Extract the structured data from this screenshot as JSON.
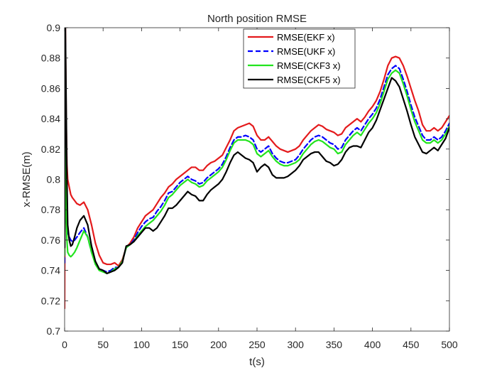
{
  "chart_data": {
    "type": "line",
    "title": "North position RMSE",
    "xlabel": "t(s)",
    "ylabel": "x-RMSE(m)",
    "xlim": [
      0,
      500
    ],
    "ylim": [
      0.7,
      0.9
    ],
    "xticks": [
      0,
      50,
      100,
      150,
      200,
      250,
      300,
      350,
      400,
      450,
      500
    ],
    "yticks": [
      0.7,
      0.72,
      0.74,
      0.76,
      0.78,
      0.8,
      0.82,
      0.84,
      0.86,
      0.88,
      0.9
    ],
    "xtick_labels": [
      "0",
      "50",
      "100",
      "150",
      "200",
      "250",
      "300",
      "350",
      "400",
      "450",
      "500"
    ],
    "ytick_labels": [
      "0.7",
      "0.72",
      "0.74",
      "0.76",
      "0.78",
      "0.8",
      "0.82",
      "0.84",
      "0.86",
      "0.88",
      "0.9"
    ],
    "grid": false,
    "legend_position": "top-right",
    "series": [
      {
        "name": "RMSE(EKF x)",
        "color": "#e41a1c",
        "dash": "solid",
        "x": [
          0,
          1,
          2,
          3,
          4,
          6,
          8,
          10,
          13,
          16,
          20,
          25,
          30,
          35,
          40,
          45,
          50,
          55,
          60,
          65,
          70,
          75,
          80,
          85,
          90,
          95,
          100,
          105,
          110,
          115,
          120,
          125,
          130,
          135,
          140,
          145,
          150,
          155,
          160,
          165,
          170,
          175,
          180,
          185,
          190,
          195,
          200,
          205,
          210,
          215,
          220,
          225,
          230,
          235,
          240,
          245,
          250,
          255,
          260,
          265,
          270,
          275,
          280,
          285,
          290,
          295,
          300,
          305,
          310,
          315,
          320,
          325,
          330,
          335,
          340,
          345,
          350,
          355,
          360,
          365,
          370,
          375,
          380,
          385,
          390,
          395,
          400,
          405,
          410,
          415,
          420,
          425,
          430,
          435,
          440,
          445,
          450,
          455,
          460,
          465,
          470,
          475,
          480,
          485,
          490,
          495,
          500
        ],
        "y": [
          0.715,
          0.9,
          0.84,
          0.81,
          0.8,
          0.795,
          0.79,
          0.788,
          0.786,
          0.784,
          0.783,
          0.785,
          0.78,
          0.77,
          0.758,
          0.75,
          0.745,
          0.744,
          0.744,
          0.745,
          0.743,
          0.747,
          0.755,
          0.758,
          0.762,
          0.768,
          0.772,
          0.776,
          0.778,
          0.78,
          0.784,
          0.788,
          0.791,
          0.795,
          0.797,
          0.8,
          0.802,
          0.804,
          0.806,
          0.808,
          0.808,
          0.806,
          0.806,
          0.809,
          0.811,
          0.812,
          0.814,
          0.816,
          0.821,
          0.826,
          0.832,
          0.834,
          0.835,
          0.836,
          0.837,
          0.835,
          0.829,
          0.826,
          0.826,
          0.828,
          0.825,
          0.822,
          0.82,
          0.819,
          0.818,
          0.819,
          0.82,
          0.822,
          0.826,
          0.829,
          0.832,
          0.834,
          0.836,
          0.835,
          0.833,
          0.832,
          0.831,
          0.829,
          0.83,
          0.834,
          0.836,
          0.838,
          0.84,
          0.838,
          0.841,
          0.845,
          0.848,
          0.852,
          0.858,
          0.866,
          0.875,
          0.88,
          0.881,
          0.88,
          0.875,
          0.868,
          0.86,
          0.852,
          0.845,
          0.836,
          0.832,
          0.832,
          0.834,
          0.832,
          0.834,
          0.838,
          0.842
        ]
      },
      {
        "name": "RMSE(UKF x)",
        "color": "#0000ff",
        "dash": "dashed",
        "x": [
          0,
          1,
          2,
          3,
          4,
          6,
          8,
          10,
          13,
          16,
          20,
          25,
          30,
          35,
          40,
          45,
          50,
          55,
          60,
          65,
          70,
          75,
          80,
          85,
          90,
          95,
          100,
          105,
          110,
          115,
          120,
          125,
          130,
          135,
          140,
          145,
          150,
          155,
          160,
          165,
          170,
          175,
          180,
          185,
          190,
          195,
          200,
          205,
          210,
          215,
          220,
          225,
          230,
          235,
          240,
          245,
          250,
          255,
          260,
          265,
          270,
          275,
          280,
          285,
          290,
          295,
          300,
          305,
          310,
          315,
          320,
          325,
          330,
          335,
          340,
          345,
          350,
          355,
          360,
          365,
          370,
          375,
          380,
          385,
          390,
          395,
          400,
          405,
          410,
          415,
          420,
          425,
          430,
          435,
          440,
          445,
          450,
          455,
          460,
          465,
          470,
          475,
          480,
          485,
          490,
          495,
          500
        ],
        "y": [
          0.745,
          0.89,
          0.8,
          0.775,
          0.765,
          0.762,
          0.76,
          0.759,
          0.76,
          0.762,
          0.765,
          0.768,
          0.762,
          0.752,
          0.745,
          0.741,
          0.74,
          0.739,
          0.74,
          0.742,
          0.742,
          0.746,
          0.755,
          0.757,
          0.76,
          0.765,
          0.769,
          0.772,
          0.774,
          0.775,
          0.779,
          0.782,
          0.786,
          0.791,
          0.792,
          0.795,
          0.798,
          0.8,
          0.802,
          0.8,
          0.799,
          0.797,
          0.798,
          0.801,
          0.803,
          0.805,
          0.807,
          0.81,
          0.815,
          0.821,
          0.826,
          0.828,
          0.828,
          0.829,
          0.828,
          0.826,
          0.82,
          0.818,
          0.82,
          0.822,
          0.817,
          0.814,
          0.812,
          0.811,
          0.811,
          0.812,
          0.813,
          0.816,
          0.82,
          0.823,
          0.826,
          0.828,
          0.829,
          0.828,
          0.826,
          0.824,
          0.823,
          0.82,
          0.821,
          0.826,
          0.829,
          0.832,
          0.834,
          0.832,
          0.836,
          0.84,
          0.843,
          0.847,
          0.853,
          0.861,
          0.869,
          0.873,
          0.875,
          0.873,
          0.866,
          0.858,
          0.849,
          0.841,
          0.835,
          0.829,
          0.826,
          0.826,
          0.828,
          0.826,
          0.828,
          0.832,
          0.837
        ]
      },
      {
        "name": "RMSE(CKF3 x)",
        "color": "#22e41e",
        "dash": "solid",
        "x": [
          0,
          1,
          2,
          3,
          4,
          6,
          8,
          10,
          13,
          16,
          20,
          25,
          30,
          35,
          40,
          45,
          50,
          55,
          60,
          65,
          70,
          75,
          80,
          85,
          90,
          95,
          100,
          105,
          110,
          115,
          120,
          125,
          130,
          135,
          140,
          145,
          150,
          155,
          160,
          165,
          170,
          175,
          180,
          185,
          190,
          195,
          200,
          205,
          210,
          215,
          220,
          225,
          230,
          235,
          240,
          245,
          250,
          255,
          260,
          265,
          270,
          275,
          280,
          285,
          290,
          295,
          300,
          305,
          310,
          315,
          320,
          325,
          330,
          335,
          340,
          345,
          350,
          355,
          360,
          365,
          370,
          375,
          380,
          385,
          390,
          395,
          400,
          405,
          410,
          415,
          420,
          425,
          430,
          435,
          440,
          445,
          450,
          455,
          460,
          465,
          470,
          475,
          480,
          485,
          490,
          495,
          500
        ],
        "y": [
          0.75,
          0.88,
          0.78,
          0.76,
          0.752,
          0.75,
          0.749,
          0.75,
          0.752,
          0.755,
          0.76,
          0.766,
          0.762,
          0.752,
          0.744,
          0.74,
          0.739,
          0.738,
          0.739,
          0.741,
          0.742,
          0.746,
          0.755,
          0.757,
          0.759,
          0.763,
          0.766,
          0.769,
          0.771,
          0.773,
          0.776,
          0.779,
          0.783,
          0.788,
          0.79,
          0.793,
          0.796,
          0.798,
          0.8,
          0.798,
          0.797,
          0.795,
          0.796,
          0.799,
          0.801,
          0.803,
          0.805,
          0.808,
          0.813,
          0.819,
          0.824,
          0.826,
          0.826,
          0.826,
          0.825,
          0.823,
          0.817,
          0.815,
          0.817,
          0.819,
          0.815,
          0.812,
          0.81,
          0.809,
          0.809,
          0.81,
          0.811,
          0.813,
          0.817,
          0.82,
          0.823,
          0.825,
          0.826,
          0.825,
          0.823,
          0.821,
          0.82,
          0.817,
          0.818,
          0.823,
          0.826,
          0.829,
          0.831,
          0.829,
          0.833,
          0.837,
          0.84,
          0.844,
          0.85,
          0.858,
          0.866,
          0.87,
          0.872,
          0.87,
          0.863,
          0.855,
          0.846,
          0.838,
          0.832,
          0.826,
          0.824,
          0.824,
          0.826,
          0.824,
          0.826,
          0.83,
          0.835
        ]
      },
      {
        "name": "RMSE(CKF5 x)",
        "color": "#000000",
        "dash": "solid",
        "x": [
          0,
          1,
          2,
          3,
          4,
          6,
          8,
          10,
          13,
          16,
          20,
          25,
          30,
          35,
          40,
          45,
          50,
          55,
          60,
          65,
          70,
          75,
          80,
          85,
          90,
          95,
          100,
          105,
          110,
          115,
          120,
          125,
          130,
          135,
          140,
          145,
          150,
          155,
          160,
          165,
          170,
          175,
          180,
          185,
          190,
          195,
          200,
          205,
          210,
          215,
          220,
          225,
          230,
          235,
          240,
          245,
          250,
          255,
          260,
          265,
          270,
          275,
          280,
          285,
          290,
          295,
          300,
          305,
          310,
          315,
          320,
          325,
          330,
          335,
          340,
          345,
          350,
          355,
          360,
          365,
          370,
          375,
          380,
          385,
          390,
          395,
          400,
          405,
          410,
          415,
          420,
          425,
          430,
          435,
          440,
          445,
          450,
          455,
          460,
          465,
          470,
          475,
          480,
          485,
          490,
          495,
          500
        ],
        "y": [
          0.755,
          0.9,
          0.85,
          0.8,
          0.77,
          0.76,
          0.756,
          0.757,
          0.762,
          0.768,
          0.773,
          0.776,
          0.77,
          0.756,
          0.746,
          0.741,
          0.74,
          0.738,
          0.739,
          0.74,
          0.742,
          0.745,
          0.756,
          0.757,
          0.759,
          0.762,
          0.765,
          0.768,
          0.768,
          0.766,
          0.768,
          0.772,
          0.776,
          0.781,
          0.781,
          0.783,
          0.786,
          0.789,
          0.792,
          0.79,
          0.789,
          0.786,
          0.786,
          0.79,
          0.793,
          0.795,
          0.797,
          0.8,
          0.805,
          0.811,
          0.816,
          0.818,
          0.816,
          0.814,
          0.813,
          0.811,
          0.805,
          0.808,
          0.81,
          0.808,
          0.803,
          0.801,
          0.801,
          0.801,
          0.802,
          0.804,
          0.806,
          0.809,
          0.813,
          0.815,
          0.817,
          0.818,
          0.818,
          0.815,
          0.812,
          0.811,
          0.809,
          0.81,
          0.813,
          0.818,
          0.821,
          0.822,
          0.822,
          0.821,
          0.826,
          0.831,
          0.834,
          0.839,
          0.846,
          0.853,
          0.86,
          0.867,
          0.865,
          0.861,
          0.853,
          0.845,
          0.836,
          0.828,
          0.823,
          0.818,
          0.817,
          0.819,
          0.821,
          0.819,
          0.823,
          0.827,
          0.834
        ]
      }
    ]
  }
}
